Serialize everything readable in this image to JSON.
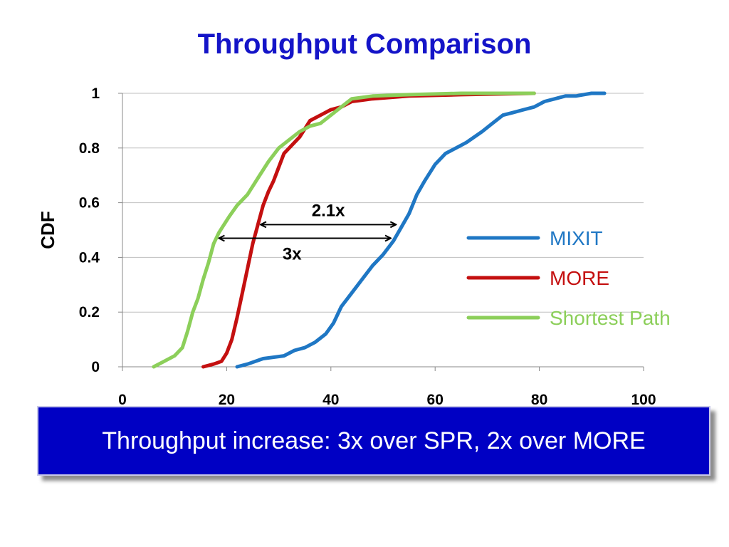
{
  "slide": {
    "title": "Throughput Comparison",
    "banner": "Throughput increase: 3x over SPR, 2x over MORE"
  },
  "chart_data": {
    "type": "line",
    "title": "",
    "xlabel": "",
    "ylabel": "CDF",
    "xlim": [
      0,
      100
    ],
    "ylim": [
      0,
      1
    ],
    "x_ticks": [
      "0",
      "20",
      "40",
      "60",
      "80",
      "100"
    ],
    "y_ticks": [
      "0",
      "0.2",
      "0.4",
      "0.6",
      "0.8",
      "1"
    ],
    "grid": "horizontal",
    "legend_position": "right",
    "series": [
      {
        "name": "MIXIT",
        "color": "#1f77c4",
        "x": [
          22,
          24,
          27,
          31,
          33,
          35,
          37,
          39,
          40.5,
          42,
          44,
          46,
          48,
          50,
          52,
          53.5,
          55,
          56.5,
          58,
          60,
          62,
          64,
          66,
          67.5,
          69,
          71,
          73,
          75,
          77,
          79,
          81,
          83,
          85,
          87,
          90,
          92.5
        ],
        "y": [
          0.0,
          0.01,
          0.03,
          0.04,
          0.06,
          0.07,
          0.09,
          0.12,
          0.16,
          0.22,
          0.27,
          0.32,
          0.37,
          0.41,
          0.46,
          0.51,
          0.56,
          0.63,
          0.68,
          0.74,
          0.78,
          0.8,
          0.82,
          0.84,
          0.86,
          0.89,
          0.92,
          0.93,
          0.94,
          0.95,
          0.97,
          0.98,
          0.99,
          0.99,
          1.0,
          1.0
        ]
      },
      {
        "name": "MORE",
        "color": "#c41010",
        "x": [
          15.5,
          17.5,
          19,
          20,
          21,
          22,
          23,
          24,
          25,
          26,
          27,
          28,
          29,
          30,
          31,
          32,
          34,
          36,
          38,
          40,
          42,
          44,
          48,
          55,
          65,
          79
        ],
        "y": [
          0.0,
          0.01,
          0.02,
          0.05,
          0.1,
          0.18,
          0.27,
          0.36,
          0.45,
          0.52,
          0.59,
          0.64,
          0.68,
          0.73,
          0.78,
          0.8,
          0.84,
          0.9,
          0.92,
          0.94,
          0.95,
          0.97,
          0.98,
          0.99,
          0.995,
          1.0
        ]
      },
      {
        "name": "Shortest Path",
        "color": "#8ccf5a",
        "x": [
          6,
          8,
          10,
          11.5,
          12.5,
          13.5,
          14.5,
          15.5,
          16.5,
          17.5,
          18.5,
          19.5,
          20.5,
          22,
          24,
          26,
          28,
          30,
          32,
          34,
          36,
          38,
          40,
          42,
          44,
          48,
          55,
          65,
          79
        ],
        "y": [
          0.0,
          0.02,
          0.04,
          0.07,
          0.13,
          0.2,
          0.25,
          0.32,
          0.38,
          0.45,
          0.49,
          0.52,
          0.55,
          0.59,
          0.63,
          0.69,
          0.75,
          0.8,
          0.83,
          0.86,
          0.88,
          0.89,
          0.92,
          0.95,
          0.98,
          0.99,
          0.995,
          1.0,
          1.0
        ]
      }
    ],
    "annotations": [
      {
        "text": "2.1x",
        "from": [
          26.5,
          0.52
        ],
        "to": [
          52.5,
          0.52
        ]
      },
      {
        "text": "3x",
        "from": [
          18.5,
          0.47
        ],
        "to": [
          51.5,
          0.47
        ]
      }
    ]
  }
}
